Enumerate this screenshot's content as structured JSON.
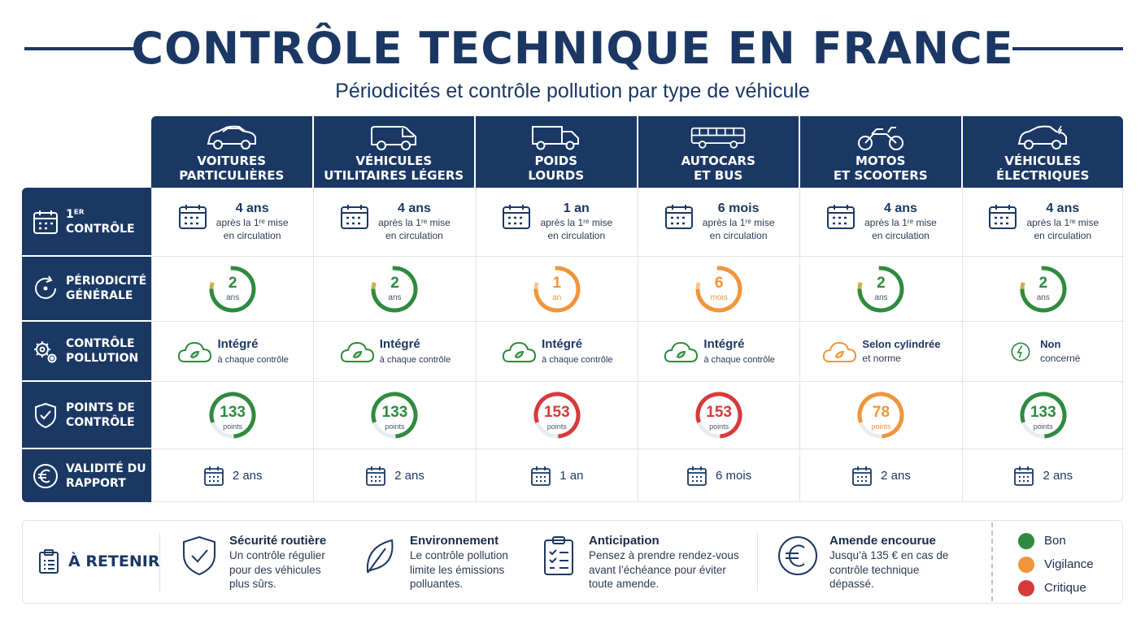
{
  "header": {
    "title": "CONTRÔLE TECHNIQUE EN FRANCE",
    "subtitle": "Périodicités et contrôle pollution par type de véhicule"
  },
  "columns": [
    {
      "label_line1": "VOITURES",
      "label_line2": "PARTICULIÈRES",
      "icon": "car-icon"
    },
    {
      "label_line1": "VÉHICULES",
      "label_line2": "UTILITAIRES LÉGERS",
      "icon": "van-icon"
    },
    {
      "label_line1": "POIDS",
      "label_line2": "LOURDS",
      "icon": "truck-icon"
    },
    {
      "label_line1": "AUTOCARS",
      "label_line2": "ET BUS",
      "icon": "bus-icon"
    },
    {
      "label_line1": "MOTOS",
      "label_line2": "ET SCOOTERS",
      "icon": "motorcycle-icon"
    },
    {
      "label_line1": "VÉHICULES",
      "label_line2": "ÉLECTRIQUES",
      "icon": "electric-car-icon"
    }
  ],
  "rows": {
    "first_control": {
      "label": "1ᴱᴿ CONTRÔLE",
      "icon": "calendar-icon"
    },
    "periodicity": {
      "label_line1": "PÉRIODICITÉ",
      "label_line2": "GÉNÉRALE",
      "icon": "cycle-icon"
    },
    "pollution": {
      "label_line1": "CONTRÔLE",
      "label_line2": "POLLUTION",
      "icon": "gears-icon"
    },
    "points": {
      "label_line1": "POINTS DE",
      "label_line2": "CONTRÔLE",
      "icon": "shield-check-icon"
    },
    "validity": {
      "label_line1": "VALIDITÉ DU",
      "label_line2": "RAPPORT",
      "icon": "euro-icon"
    }
  },
  "first_control": [
    {
      "value": "4 ans",
      "detail1": "après la 1ʳᵉ mise",
      "detail2": "en circulation"
    },
    {
      "value": "4 ans",
      "detail1": "après la 1ʳᵉ mise",
      "detail2": "en circulation"
    },
    {
      "value": "1 an",
      "detail1": "après la 1ʳᵉ mise",
      "detail2": "en circulation"
    },
    {
      "value": "6 mois",
      "detail1": "après la 1ʳᵉ mise",
      "detail2": "en circulation"
    },
    {
      "value": "4 ans",
      "detail1": "après la 1ʳᵉ mise",
      "detail2": "en circulation"
    },
    {
      "value": "4 ans",
      "detail1": "après la 1ʳᵉ mise",
      "detail2": "en circulation"
    }
  ],
  "periodicity": [
    {
      "value": "2",
      "unit": "ans",
      "status": "bon"
    },
    {
      "value": "2",
      "unit": "ans",
      "status": "bon"
    },
    {
      "value": "1",
      "unit": "an",
      "status": "vigilance"
    },
    {
      "value": "6",
      "unit": "mois",
      "status": "vigilance"
    },
    {
      "value": "2",
      "unit": "ans",
      "status": "bon"
    },
    {
      "value": "2",
      "unit": "ans",
      "status": "bon"
    }
  ],
  "pollution": [
    {
      "title": "Intégré",
      "detail": "à chaque contrôle",
      "status": "bon"
    },
    {
      "title": "Intégré",
      "detail": "à chaque contrôle",
      "status": "bon"
    },
    {
      "title": "Intégré",
      "detail": "à chaque contrôle",
      "status": "bon"
    },
    {
      "title": "Intégré",
      "detail": "à chaque contrôle",
      "status": "bon"
    },
    {
      "title": "Selon cylindrée",
      "detail": "et norme",
      "status": "vigilance"
    },
    {
      "title": "Non",
      "detail": "concerné",
      "status": "bon"
    }
  ],
  "points": [
    {
      "value": "133",
      "unit": "points",
      "status": "bon"
    },
    {
      "value": "133",
      "unit": "points",
      "status": "bon"
    },
    {
      "value": "153",
      "unit": "points",
      "status": "critique"
    },
    {
      "value": "153",
      "unit": "points",
      "status": "critique"
    },
    {
      "value": "78",
      "unit": "points",
      "status": "vigilance"
    },
    {
      "value": "133",
      "unit": "points",
      "status": "bon"
    }
  ],
  "validity": [
    "2 ans",
    "2 ans",
    "1 an",
    "6 mois",
    "2 ans",
    "2 ans"
  ],
  "bottom": {
    "retenir_label": "À RETENIR",
    "tips": [
      {
        "title": "Sécurité routière",
        "lines": [
          "Un contrôle régulier",
          "pour des véhicules",
          "plus sûrs."
        ],
        "icon": "shield-check-icon"
      },
      {
        "title": "Environnement",
        "lines": [
          "Le contrôle pollution",
          "limite les émissions",
          "polluantes."
        ],
        "icon": "leaf-icon"
      },
      {
        "title": "Anticipation",
        "lines": [
          "Pensez à prendre rendez-vous",
          "avant l’échéance pour éviter",
          "toute amende."
        ],
        "icon": "checklist-icon"
      },
      {
        "title": "Amende encourue",
        "lines": [
          "Jusqu’à 135 € en cas de",
          "contrôle technique",
          "dépassé."
        ],
        "icon": "euro-icon"
      }
    ],
    "legend": [
      {
        "label": "Bon",
        "color": "#2e8b3e"
      },
      {
        "label": "Vigilance",
        "color": "#f0953a"
      },
      {
        "label": "Critique",
        "color": "#d63a3a"
      }
    ]
  },
  "colors": {
    "navy": "#1b3864",
    "bon": "#2e8b3e",
    "vigilance": "#f0953a",
    "critique": "#d63a3a"
  }
}
